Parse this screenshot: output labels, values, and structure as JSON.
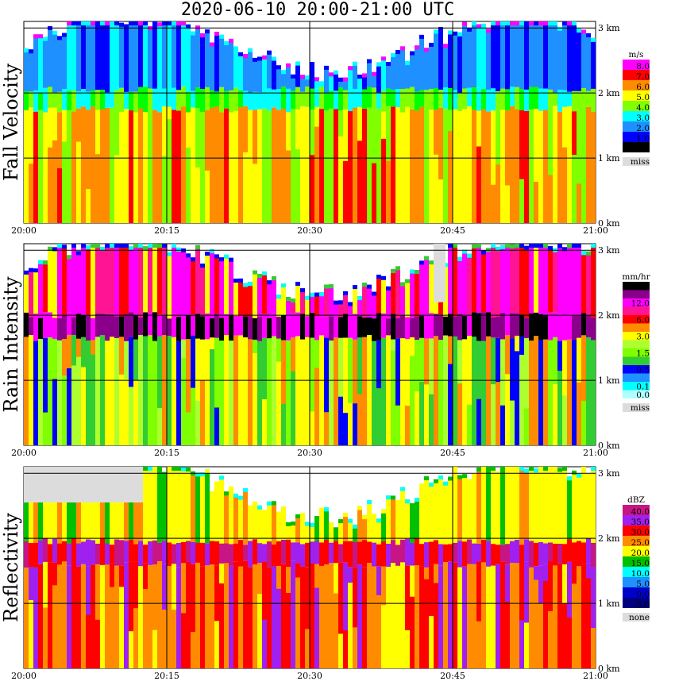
{
  "title": "2020-06-10   20:00-21:00 UTC",
  "x_ticks": [
    "20:00",
    "20:15",
    "20:30",
    "20:45",
    "21:00"
  ],
  "height_ticks": [
    "0 km",
    "1 km",
    "2 km",
    "3 km"
  ],
  "colors": {
    "missing": "#dcdcdc",
    "grid": "#000000"
  },
  "chart_data": [
    {
      "type": "heatmap",
      "panel": "fall_velocity",
      "ylabel": "Fall Velocity",
      "xlim": [
        "20:00",
        "21:00"
      ],
      "ylim_km": [
        0,
        3.1
      ],
      "legend": {
        "unit": "m/s",
        "levels": [
          {
            "label": "8.0",
            "color": "#ff00ff"
          },
          {
            "label": "7.0",
            "color": "#ff0000"
          },
          {
            "label": "6.0",
            "color": "#ff8c00"
          },
          {
            "label": "5.0",
            "color": "#ffff00"
          },
          {
            "label": "4.0",
            "color": "#7fff00"
          },
          {
            "label": "3.0",
            "color": "#00ffff"
          },
          {
            "label": "2.0",
            "color": "#1e90ff"
          },
          {
            "label": "1.0",
            "color": "#0000ff"
          },
          {
            "label": "0.0",
            "color": "#000000"
          }
        ],
        "missing_label": "miss"
      },
      "layers": [
        {
          "from_km": 2.05,
          "to_km": 3.1,
          "value": "1.0-2.0"
        },
        {
          "from_km": 1.75,
          "to_km": 2.05,
          "value": "2.0-4.0"
        },
        {
          "from_km": 0.0,
          "to_km": 1.75,
          "value": "5.0-7.0"
        }
      ]
    },
    {
      "type": "heatmap",
      "panel": "rain_intensity",
      "ylabel": "Rain Intensity",
      "xlim": [
        "20:00",
        "21:00"
      ],
      "ylim_km": [
        0,
        3.1
      ],
      "legend": {
        "unit": "mm/hr",
        "levels": [
          {
            "label": "48.0",
            "color": "#000000"
          },
          {
            "label": "",
            "color": "#8b008b"
          },
          {
            "label": "12.0",
            "color": "#ff00ff"
          },
          {
            "label": "",
            "color": "#ff1493"
          },
          {
            "label": "6.0",
            "color": "#ff0000"
          },
          {
            "label": "",
            "color": "#ff8c00"
          },
          {
            "label": "3.0",
            "color": "#ffff00"
          },
          {
            "label": "",
            "color": "#adff2f"
          },
          {
            "label": "1.5",
            "color": "#7fff00"
          },
          {
            "label": "",
            "color": "#32cd32"
          },
          {
            "label": "0.5",
            "color": "#0000ff"
          },
          {
            "label": "",
            "color": "#1e90ff"
          },
          {
            "label": "0.1",
            "color": "#00ffff"
          },
          {
            "label": "0.0",
            "color": "#b0ffff"
          }
        ],
        "missing_label": "miss"
      },
      "layers": [
        {
          "from_km": 2.05,
          "to_km": 3.1,
          "value": "6.0-48.0"
        },
        {
          "from_km": 1.65,
          "to_km": 2.0,
          "value": "12.0-48.0"
        },
        {
          "from_km": 0.0,
          "to_km": 1.6,
          "value": "0.5-3.0"
        }
      ]
    },
    {
      "type": "heatmap",
      "panel": "reflectivity",
      "ylabel": "Reflectivity",
      "xlim": [
        "20:00",
        "21:00"
      ],
      "ylim_km": [
        0,
        3.1
      ],
      "legend": {
        "unit": "dBZ",
        "levels": [
          {
            "label": "40.0",
            "color": "#c71585"
          },
          {
            "label": "35.0",
            "color": "#a020f0"
          },
          {
            "label": "30.0",
            "color": "#ff0000"
          },
          {
            "label": "25.0",
            "color": "#ff8c00"
          },
          {
            "label": "20.0",
            "color": "#ffff00"
          },
          {
            "label": "15.0",
            "color": "#00c000"
          },
          {
            "label": "10.0",
            "color": "#00ffff"
          },
          {
            "label": "5.0",
            "color": "#1e90ff"
          },
          {
            "label": "0.0",
            "color": "#0000cd"
          },
          {
            "label": "-5.0",
            "color": "#000080"
          }
        ],
        "missing_label": "none"
      },
      "layers": [
        {
          "from_km": 2.0,
          "to_km": 3.1,
          "value": "15.0-25.0"
        },
        {
          "from_km": 1.6,
          "to_km": 1.95,
          "value": "30.0-35.0"
        },
        {
          "from_km": 0.0,
          "to_km": 1.6,
          "value": "25.0-30.0"
        }
      ]
    }
  ]
}
